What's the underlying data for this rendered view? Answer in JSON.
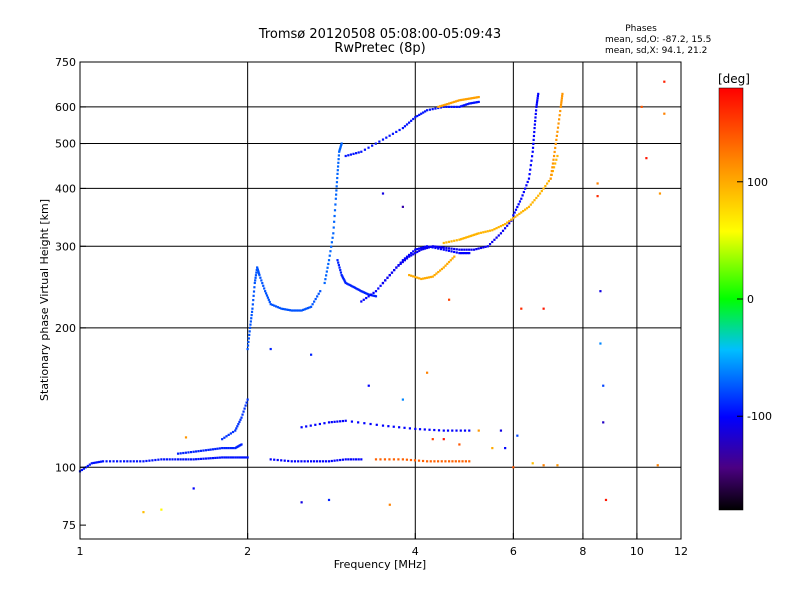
{
  "chart_data": {
    "type": "scatter",
    "title": "Tromsø 20120508 05:08:00-05:09:43",
    "subtitle": "RwPretec (8p)",
    "xlabel": "Frequency [MHz]",
    "ylabel": "Stationary phase Virtual Height [km]",
    "x_scale": "log",
    "y_scale": "log",
    "xlim": [
      1,
      12
    ],
    "ylim": [
      70,
      750
    ],
    "x_ticks": [
      1,
      2,
      4,
      6,
      8,
      10,
      12
    ],
    "y_ticks": [
      75,
      100,
      200,
      300,
      400,
      500,
      600,
      750
    ],
    "x_grid": [
      2,
      4,
      6,
      8,
      10
    ],
    "y_grid": [
      100,
      200,
      300,
      400,
      500,
      600
    ],
    "grid": true,
    "phases_info": {
      "title": "Phases",
      "line1": "mean, sd,O: -87.2, 15.5",
      "line2": "mean, sd,X:  94.1, 21.2"
    },
    "colorbar": {
      "label": "[deg]",
      "range": [
        -180,
        180
      ],
      "ticks": [
        100,
        0,
        -100
      ],
      "position": "right"
    },
    "traces": [
      {
        "x": [
          1.0,
          1.05,
          1.1,
          1.2,
          1.3,
          1.4,
          1.5,
          1.6,
          1.7,
          1.8,
          1.9,
          2.0
        ],
        "y": [
          98,
          102,
          103,
          103,
          103,
          104,
          104,
          104,
          104.5,
          105,
          105,
          105
        ],
        "phase": -95
      },
      {
        "x": [
          1.5,
          1.6,
          1.7,
          1.8,
          1.9,
          1.95
        ],
        "y": [
          107,
          108,
          109,
          110,
          110,
          112
        ],
        "phase": -90
      },
      {
        "x": [
          1.8,
          1.9,
          1.95,
          2.0
        ],
        "y": [
          115,
          120,
          128,
          140
        ],
        "phase": -85
      },
      {
        "x": [
          2.0,
          2.02,
          2.04,
          2.06,
          2.08,
          2.1,
          2.15,
          2.2,
          2.3,
          2.4,
          2.5,
          2.6,
          2.7
        ],
        "y": [
          180,
          200,
          220,
          250,
          270,
          260,
          240,
          225,
          220,
          218,
          218,
          222,
          240
        ],
        "phase": -75
      },
      {
        "x": [
          2.75,
          2.8,
          2.85,
          2.88,
          2.9,
          2.92,
          2.95
        ],
        "y": [
          250,
          280,
          320,
          380,
          430,
          480,
          500
        ],
        "phase": -70
      },
      {
        "x": [
          2.9,
          2.95,
          3.0,
          3.1,
          3.2,
          3.3,
          3.4
        ],
        "y": [
          280,
          260,
          250,
          245,
          240,
          236,
          234
        ],
        "phase": -90
      },
      {
        "x": [
          3.0,
          3.2,
          3.5,
          3.8,
          4.0,
          4.2,
          4.5,
          4.8,
          5.0,
          5.2
        ],
        "y": [
          470,
          480,
          510,
          540,
          570,
          590,
          600,
          600,
          610,
          615
        ],
        "phase": -95
      },
      {
        "x": [
          3.2,
          3.4,
          3.6,
          3.8,
          4.0,
          4.2,
          4.5,
          4.8,
          5.0
        ],
        "y": [
          228,
          240,
          260,
          280,
          295,
          300,
          295,
          290,
          290
        ],
        "phase": -100
      },
      {
        "x": [
          3.5,
          3.7,
          3.9,
          4.1,
          4.3,
          4.5,
          4.8,
          5.1,
          5.4,
          5.7,
          6.0
        ],
        "y": [
          250,
          270,
          285,
          295,
          300,
          298,
          295,
          295,
          300,
          320,
          345
        ],
        "phase": -105
      },
      {
        "x": [
          4.5,
          4.8,
          5.0,
          5.2,
          5.5,
          5.8,
          6.1,
          6.4,
          6.7,
          7.0,
          7.2
        ],
        "y": [
          305,
          310,
          315,
          320,
          325,
          335,
          350,
          365,
          390,
          420,
          470
        ],
        "phase": 95
      },
      {
        "x": [
          3.9,
          4.1,
          4.3,
          4.5,
          4.7
        ],
        "y": [
          260,
          255,
          258,
          270,
          285
        ],
        "phase": 100
      },
      {
        "x": [
          6.0,
          6.2,
          6.4,
          6.5,
          6.55,
          6.6,
          6.65
        ],
        "y": [
          350,
          380,
          420,
          480,
          540,
          600,
          640
        ],
        "phase": -100
      },
      {
        "x": [
          7.0,
          7.1,
          7.2,
          7.3,
          7.35
        ],
        "y": [
          420,
          470,
          530,
          600,
          640
        ],
        "phase": 110
      },
      {
        "x": [
          4.4,
          4.6,
          4.8,
          5.0,
          5.2
        ],
        "y": [
          600,
          610,
          620,
          625,
          630
        ],
        "phase": 105
      },
      {
        "x": [
          2.5,
          2.8,
          3.0,
          3.5,
          4.0,
          4.5,
          5.0
        ],
        "y": [
          122,
          125,
          126,
          123,
          121,
          120,
          120
        ],
        "phase": -100
      },
      {
        "x": [
          2.2,
          2.4,
          2.6,
          2.8,
          3.0,
          3.2
        ],
        "y": [
          104,
          103,
          103,
          103,
          104,
          104
        ],
        "phase": -100
      },
      {
        "x": [
          3.4,
          3.8,
          4.2,
          4.6,
          5.0
        ],
        "y": [
          104,
          104,
          103,
          103,
          103
        ],
        "phase": 135
      }
    ],
    "scatter_points": [
      {
        "x": 1.3,
        "y": 80,
        "phase": 90
      },
      {
        "x": 1.4,
        "y": 81,
        "phase": 60
      },
      {
        "x": 1.55,
        "y": 116,
        "phase": 110
      },
      {
        "x": 1.6,
        "y": 90,
        "phase": -100
      },
      {
        "x": 2.5,
        "y": 84,
        "phase": -110
      },
      {
        "x": 2.8,
        "y": 85,
        "phase": -90
      },
      {
        "x": 3.6,
        "y": 83,
        "phase": 120
      },
      {
        "x": 4.3,
        "y": 115,
        "phase": 150
      },
      {
        "x": 4.5,
        "y": 115,
        "phase": 170
      },
      {
        "x": 4.8,
        "y": 112,
        "phase": 140
      },
      {
        "x": 5.2,
        "y": 120,
        "phase": 110
      },
      {
        "x": 5.5,
        "y": 110,
        "phase": 100
      },
      {
        "x": 5.7,
        "y": 120,
        "phase": -110
      },
      {
        "x": 6.0,
        "y": 100,
        "phase": 140
      },
      {
        "x": 6.5,
        "y": 102,
        "phase": 90
      },
      {
        "x": 6.8,
        "y": 101,
        "phase": 120
      },
      {
        "x": 7.2,
        "y": 101,
        "phase": 110
      },
      {
        "x": 6.2,
        "y": 220,
        "phase": 160
      },
      {
        "x": 6.8,
        "y": 220,
        "phase": 170
      },
      {
        "x": 8.5,
        "y": 410,
        "phase": 120
      },
      {
        "x": 8.5,
        "y": 385,
        "phase": 160
      },
      {
        "x": 8.6,
        "y": 240,
        "phase": -110
      },
      {
        "x": 8.6,
        "y": 185,
        "phase": -60
      },
      {
        "x": 8.7,
        "y": 150,
        "phase": -80
      },
      {
        "x": 8.7,
        "y": 125,
        "phase": -120
      },
      {
        "x": 8.8,
        "y": 85,
        "phase": 170
      },
      {
        "x": 10.2,
        "y": 600,
        "phase": 140
      },
      {
        "x": 10.4,
        "y": 465,
        "phase": 170
      },
      {
        "x": 11.0,
        "y": 390,
        "phase": 110
      },
      {
        "x": 11.2,
        "y": 680,
        "phase": 165
      },
      {
        "x": 11.2,
        "y": 580,
        "phase": 120
      },
      {
        "x": 10.9,
        "y": 101,
        "phase": 120
      },
      {
        "x": 3.5,
        "y": 390,
        "phase": -110
      },
      {
        "x": 3.8,
        "y": 365,
        "phase": -130
      },
      {
        "x": 4.6,
        "y": 230,
        "phase": 150
      },
      {
        "x": 4.2,
        "y": 160,
        "phase": 120
      },
      {
        "x": 3.8,
        "y": 140,
        "phase": -60
      },
      {
        "x": 2.2,
        "y": 180,
        "phase": -90
      },
      {
        "x": 2.6,
        "y": 175,
        "phase": -90
      },
      {
        "x": 3.3,
        "y": 150,
        "phase": -100
      },
      {
        "x": 5.8,
        "y": 110,
        "phase": -100
      },
      {
        "x": 6.1,
        "y": 117,
        "phase": -80
      }
    ]
  }
}
